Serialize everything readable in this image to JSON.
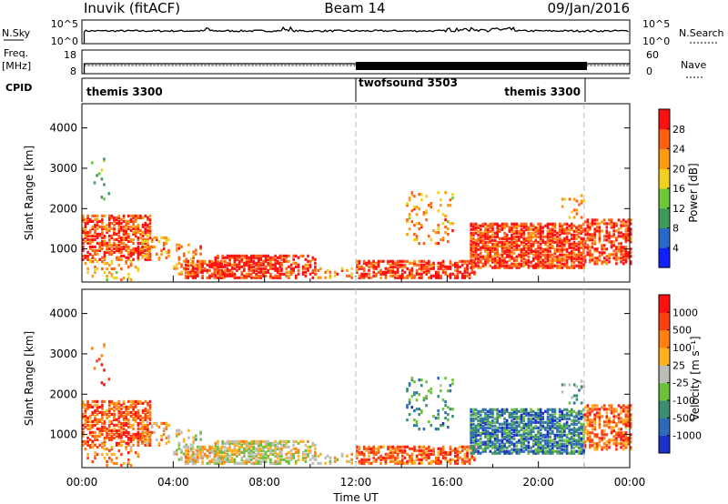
{
  "header": {
    "station": "Inuvik (fitACF)",
    "beam": "Beam 14",
    "date": "09/Jan/2016"
  },
  "nsky_panel": {
    "left_label": "N.Sky",
    "right_label": "N.Search",
    "left_ticks": [
      "10^5",
      "10^0"
    ],
    "right_ticks": [
      "10^5",
      "10^0"
    ]
  },
  "freq_panel": {
    "left_label_1": "Freq.",
    "left_label_2": "[MHz]",
    "right_label": "Nave",
    "left_ticks": [
      "18",
      "8"
    ],
    "right_ticks": [
      "60",
      "0"
    ]
  },
  "cpid_panel": {
    "label": "CPID",
    "programs": [
      "themis 3300",
      "twofsound 3503",
      "themis 3300"
    ]
  },
  "chart_data": [
    {
      "type": "heatmap",
      "id": "power",
      "ylabel": "Slant Range [km]",
      "y_ticks": [
        1000,
        2000,
        3000,
        4000
      ],
      "ylim": [
        180,
        4600
      ],
      "colorbar": {
        "label": "Power [dB]",
        "ticks": [
          "4",
          "8",
          "12",
          "16",
          "20",
          "24",
          "28"
        ],
        "colors": [
          "#1020ff",
          "#2868c8",
          "#3f9a5a",
          "#6cc838",
          "#f0d020",
          "#ff9a10",
          "#ff6010",
          "#ff1010"
        ]
      },
      "vertical_marks_hours": [
        12,
        22
      ]
    },
    {
      "type": "heatmap",
      "id": "velocity",
      "ylabel": "Slant Range [km]",
      "y_ticks": [
        1000,
        2000,
        3000,
        4000
      ],
      "ylim": [
        180,
        4600
      ],
      "colorbar": {
        "label": "Velocity [m s⁻¹]",
        "ticks": [
          "1000",
          "500",
          "100",
          "25",
          "-25",
          "-100",
          "-500",
          "-1000"
        ],
        "colors": [
          "#1a30c8",
          "#2e6ab8",
          "#3c8e70",
          "#6cc03c",
          "#bdbdb8",
          "#ffb020",
          "#ff8010",
          "#ff4010",
          "#ff1010"
        ]
      },
      "vertical_marks_hours": [
        12,
        22
      ]
    }
  ],
  "x_axis": {
    "label": "Time UT",
    "ticks": [
      "00:00",
      "04:00",
      "08:00",
      "12:00",
      "16:00",
      "20:00",
      "00:00"
    ],
    "range_hours": [
      0,
      24
    ]
  }
}
